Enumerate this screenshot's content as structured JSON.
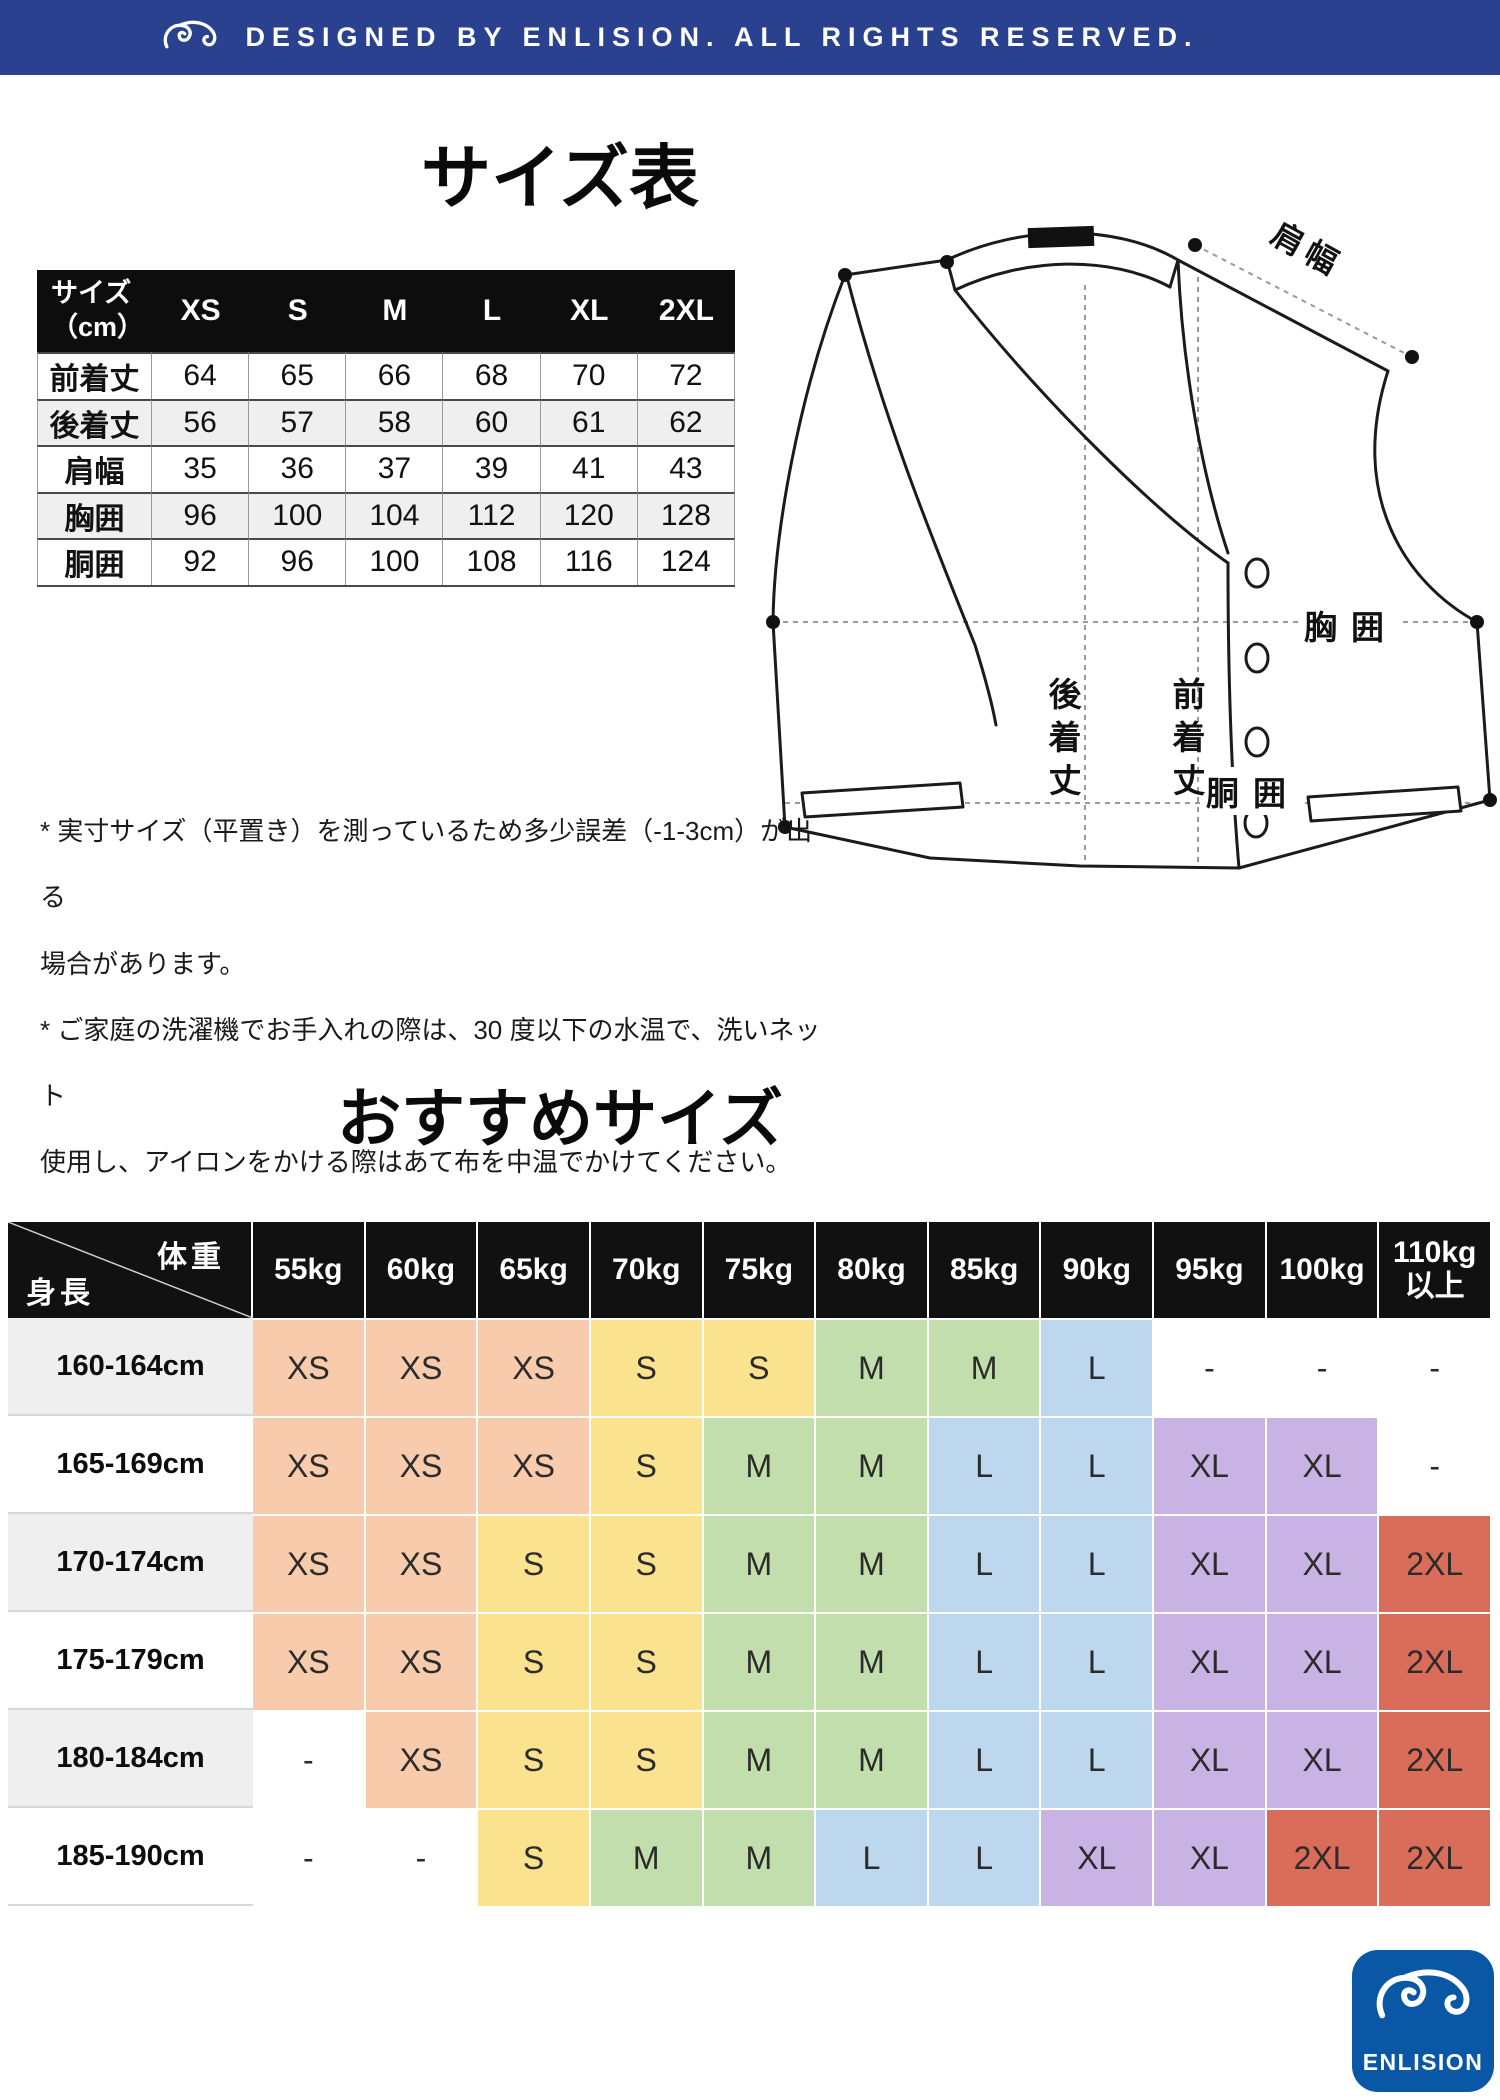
{
  "header": {
    "text": "DESIGNED BY ENLISION. ALL RIGHTS RESERVED."
  },
  "section1": {
    "title": "サイズ表"
  },
  "size_table": {
    "corner": "サイズ\n（cm）",
    "columns": [
      "XS",
      "S",
      "M",
      "L",
      "XL",
      "2XL"
    ],
    "rows": [
      {
        "label": "前着丈",
        "values": [
          "64",
          "65",
          "66",
          "68",
          "70",
          "72"
        ]
      },
      {
        "label": "後着丈",
        "values": [
          "56",
          "57",
          "58",
          "60",
          "61",
          "62"
        ]
      },
      {
        "label": "肩幅",
        "values": [
          "35",
          "36",
          "37",
          "39",
          "41",
          "43"
        ]
      },
      {
        "label": "胸囲",
        "values": [
          "96",
          "100",
          "104",
          "112",
          "120",
          "128"
        ]
      },
      {
        "label": "胴囲",
        "values": [
          "92",
          "96",
          "100",
          "108",
          "116",
          "124"
        ]
      }
    ]
  },
  "diagram": {
    "labels": {
      "shoulder": "肩幅",
      "chest": "胸囲",
      "waist": "胴囲",
      "back_length": "後着丈",
      "front_length": "前着丈"
    }
  },
  "notes": [
    "* 実寸サイズ（平置き）を測っているため多少誤差（-1-3cm）が出る\n場合があります。",
    "* ご家庭の洗濯機でお手入れの際は、30 度以下の水温で、洗いネット\n使用し、アイロンをかける際はあて布を中温でかけてください。"
  ],
  "section2": {
    "title": "おすすめサイズ"
  },
  "reco_table": {
    "corner": {
      "top": "体重",
      "bottom": "身長"
    },
    "columns": [
      "55kg",
      "60kg",
      "65kg",
      "70kg",
      "75kg",
      "80kg",
      "85kg",
      "90kg",
      "95kg",
      "100kg",
      "110kg以上"
    ],
    "rows": [
      {
        "label": "160-164cm",
        "values": [
          "XS",
          "XS",
          "XS",
          "S",
          "S",
          "M",
          "M",
          "L",
          "-",
          "-",
          "-"
        ]
      },
      {
        "label": "165-169cm",
        "values": [
          "XS",
          "XS",
          "XS",
          "S",
          "M",
          "M",
          "L",
          "L",
          "XL",
          "XL",
          "-"
        ]
      },
      {
        "label": "170-174cm",
        "values": [
          "XS",
          "XS",
          "S",
          "S",
          "M",
          "M",
          "L",
          "L",
          "XL",
          "XL",
          "2XL"
        ]
      },
      {
        "label": "175-179cm",
        "values": [
          "XS",
          "XS",
          "S",
          "S",
          "M",
          "M",
          "L",
          "L",
          "XL",
          "XL",
          "2XL"
        ]
      },
      {
        "label": "180-184cm",
        "values": [
          "-",
          "XS",
          "S",
          "S",
          "M",
          "M",
          "L",
          "L",
          "XL",
          "XL",
          "2XL"
        ]
      },
      {
        "label": "185-190cm",
        "values": [
          "-",
          "-",
          "S",
          "M",
          "M",
          "L",
          "L",
          "XL",
          "XL",
          "2XL",
          "2XL"
        ]
      }
    ],
    "size_colors": {
      "XS": "#F8CBAD",
      "S": "#FBE28E",
      "M": "#C3DEAD",
      "L": "#BDD7EE",
      "XL": "#C9B3E4",
      "2XL": "#DA6C5A",
      "-": "#FFFFFF"
    }
  },
  "logo": {
    "brand": "ENLISION"
  },
  "colors": {
    "topbar_bg": "#2A4190",
    "logo_bg": "#0A57A6",
    "table_header_bg": "#0D0D0D",
    "shade_row": "#EFEFEF"
  }
}
